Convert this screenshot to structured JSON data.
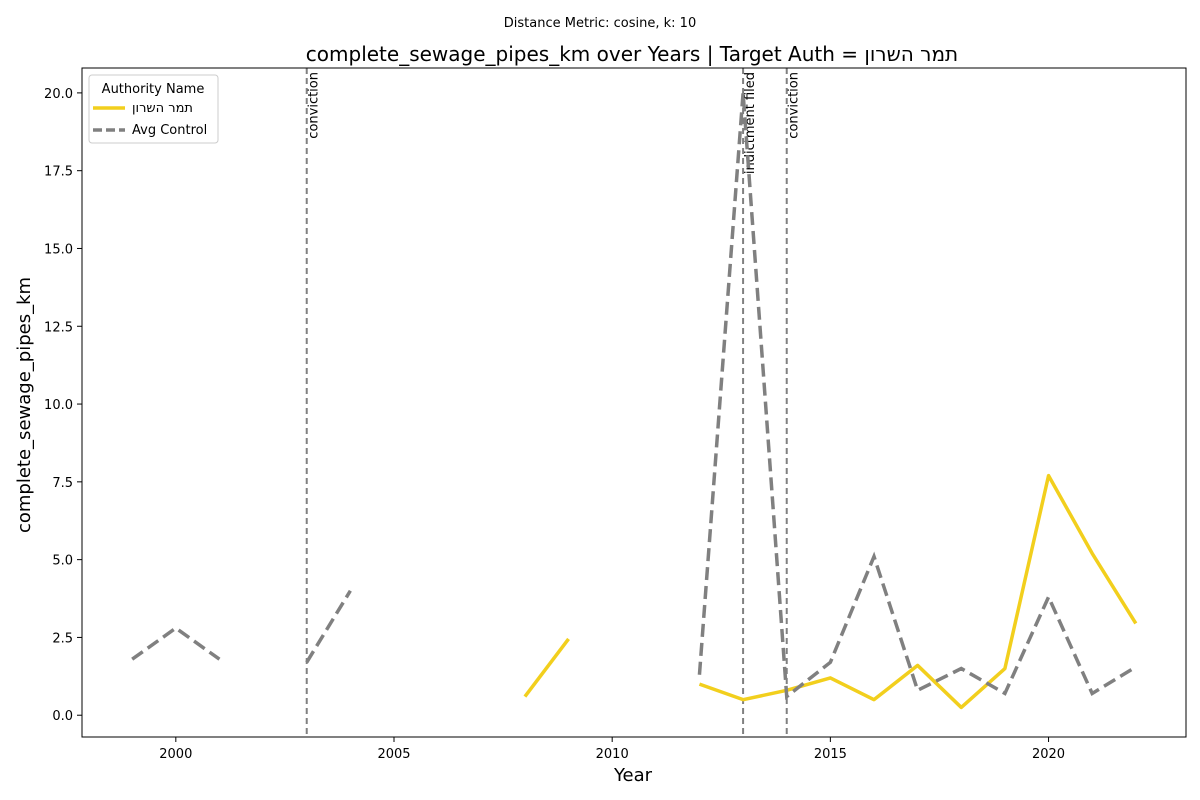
{
  "chart_data": {
    "type": "line",
    "suptitle": "Distance Metric: cosine, k: 10",
    "title": "complete_sewage_pipes_km over Years | Target Auth = תמר השרון",
    "xlabel": "Year",
    "ylabel": "complete_sewage_pipes_km",
    "xlim": [
      1997.85,
      2023.15
    ],
    "ylim": [
      -0.7,
      20.8
    ],
    "xticks": [
      2000,
      2005,
      2010,
      2015,
      2020
    ],
    "yticks": [
      0.0,
      2.5,
      5.0,
      7.5,
      10.0,
      12.5,
      15.0,
      17.5,
      20.0
    ],
    "ytick_labels": [
      "0.0",
      "2.5",
      "5.0",
      "7.5",
      "10.0",
      "12.5",
      "15.0",
      "17.5",
      "20.0"
    ],
    "grid": false,
    "legend": {
      "title": "Authority Name",
      "placement": "top-left"
    },
    "series": [
      {
        "name": "תמר השרון",
        "color": "#f2cf1d",
        "style": "solid",
        "points": [
          [
            2008,
            0.6
          ],
          [
            2009,
            2.45
          ],
          [
            2010,
            null
          ],
          [
            2011,
            null
          ],
          [
            2012,
            1.0
          ],
          [
            2013,
            0.5
          ],
          [
            2014,
            0.8
          ],
          [
            2015,
            1.2
          ],
          [
            2016,
            0.5
          ],
          [
            2017,
            1.6
          ],
          [
            2018,
            0.25
          ],
          [
            2019,
            1.5
          ],
          [
            2020,
            7.7
          ],
          [
            2021,
            5.2
          ],
          [
            2022,
            2.95
          ]
        ]
      },
      {
        "name": "Avg Control",
        "color": "#808080",
        "style": "dashed",
        "points": [
          [
            1999,
            1.8
          ],
          [
            2000,
            2.8
          ],
          [
            2001,
            1.8
          ],
          [
            2002,
            null
          ],
          [
            2003,
            1.7
          ],
          [
            2004,
            4.0
          ],
          [
            2005,
            null
          ],
          [
            2011,
            null
          ],
          [
            2012,
            1.3
          ],
          [
            2013,
            20.0
          ],
          [
            2014,
            0.6
          ],
          [
            2015,
            1.7
          ],
          [
            2016,
            5.1
          ],
          [
            2017,
            0.8
          ],
          [
            2018,
            1.5
          ],
          [
            2019,
            0.7
          ],
          [
            2020,
            3.8
          ],
          [
            2021,
            0.7
          ],
          [
            2022,
            1.55
          ]
        ]
      }
    ],
    "events": [
      {
        "x": 2003,
        "label": "conviction"
      },
      {
        "x": 2013,
        "label": "indictment filed"
      },
      {
        "x": 2014,
        "label": "conviction"
      }
    ]
  }
}
